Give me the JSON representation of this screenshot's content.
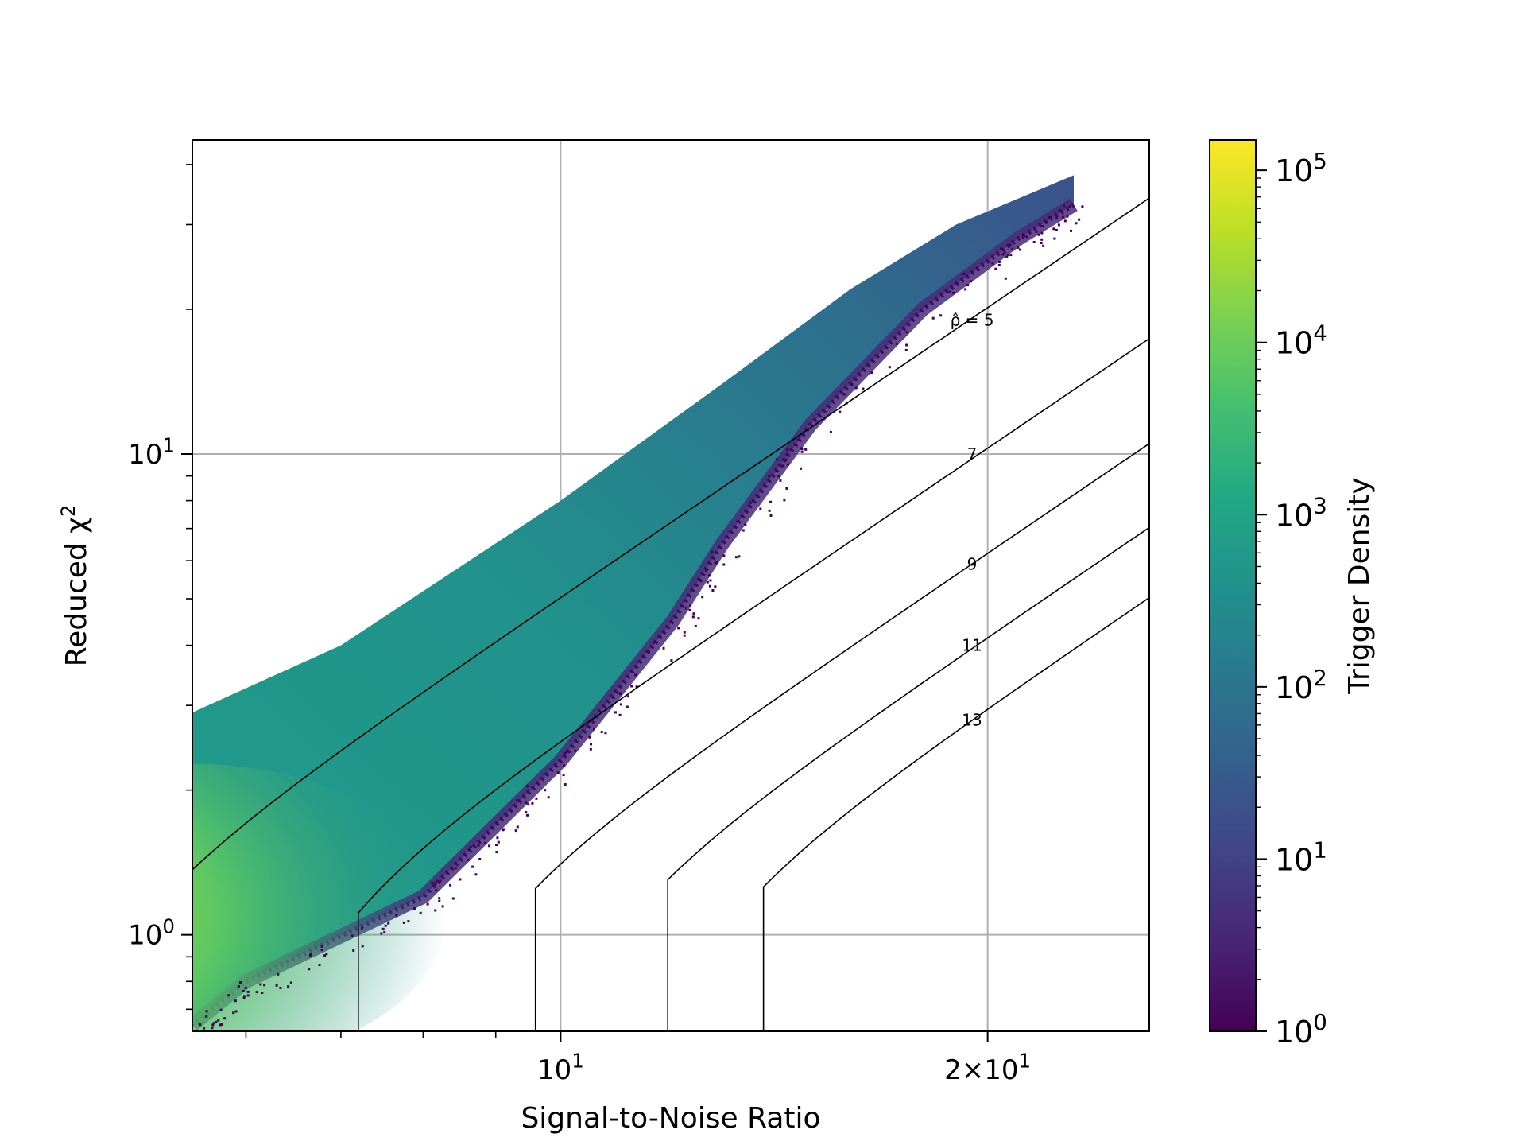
{
  "chart_data": {
    "type": "hexbin-density",
    "title": "",
    "xlabel": "Signal-to-Noise Ratio",
    "ylabel": "Reduced χ²",
    "xscale": "log",
    "yscale": "log",
    "xlim": [
      5.5,
      26.0
    ],
    "ylim": [
      0.63,
      45.0
    ],
    "grid": true,
    "x_ticks": [
      {
        "value": 10,
        "base": "10",
        "exp": "1",
        "prefix": ""
      },
      {
        "value": 20,
        "base": "10",
        "exp": "1",
        "prefix": "2×"
      }
    ],
    "y_ticks": [
      {
        "value": 1,
        "base": "10",
        "exp": "0"
      },
      {
        "value": 10,
        "base": "10",
        "exp": "1"
      }
    ],
    "colorbar": {
      "label": "Trigger Density",
      "scale": "log",
      "range": [
        1,
        150000
      ],
      "ticks": [
        {
          "value": 1,
          "base": "10",
          "exp": "0"
        },
        {
          "value": 10,
          "base": "10",
          "exp": "1"
        },
        {
          "value": 100,
          "base": "10",
          "exp": "2"
        },
        {
          "value": 1000,
          "base": "10",
          "exp": "3"
        },
        {
          "value": 10000,
          "base": "10",
          "exp": "4"
        },
        {
          "value": 100000,
          "base": "10",
          "exp": "5"
        }
      ],
      "colormap": "viridis"
    },
    "density_region": {
      "upper_edge": [
        [
          5.5,
          2.9
        ],
        [
          7.0,
          4.0
        ],
        [
          10.0,
          8.0
        ],
        [
          13.0,
          14.0
        ],
        [
          16.0,
          22.0
        ],
        [
          19.0,
          30.0
        ],
        [
          23.0,
          38.0
        ]
      ],
      "lower_edge": [
        [
          23.0,
          33.0
        ],
        [
          21.0,
          28.0
        ],
        [
          18.0,
          20.0
        ],
        [
          15.0,
          11.5
        ],
        [
          13.0,
          6.5
        ],
        [
          12.0,
          4.5
        ],
        [
          10.0,
          2.3
        ],
        [
          8.0,
          1.2
        ],
        [
          6.0,
          0.8
        ],
        [
          5.5,
          0.65
        ]
      ],
      "peak_at": [
        5.5,
        1.1
      ],
      "peak_density": 150000
    },
    "contours": [
      {
        "label": "ρ̂ = 5",
        "rho": 5,
        "label_at": [
          19.5,
          19.0
        ]
      },
      {
        "label": "7",
        "rho": 7,
        "label_at": [
          19.5,
          10.0
        ]
      },
      {
        "label": "9",
        "rho": 9,
        "label_at": [
          19.5,
          5.9
        ]
      },
      {
        "label": "11",
        "rho": 11,
        "label_at": [
          19.5,
          4.0
        ]
      },
      {
        "label": "13",
        "rho": 13,
        "label_at": [
          19.5,
          2.8
        ]
      }
    ],
    "contour_rule": {
      "xref": 3.0,
      "knee_snr": [
        4.3,
        7.2,
        9.6,
        11.9,
        13.9
      ],
      "baseline_chi2": 1.0
    }
  }
}
